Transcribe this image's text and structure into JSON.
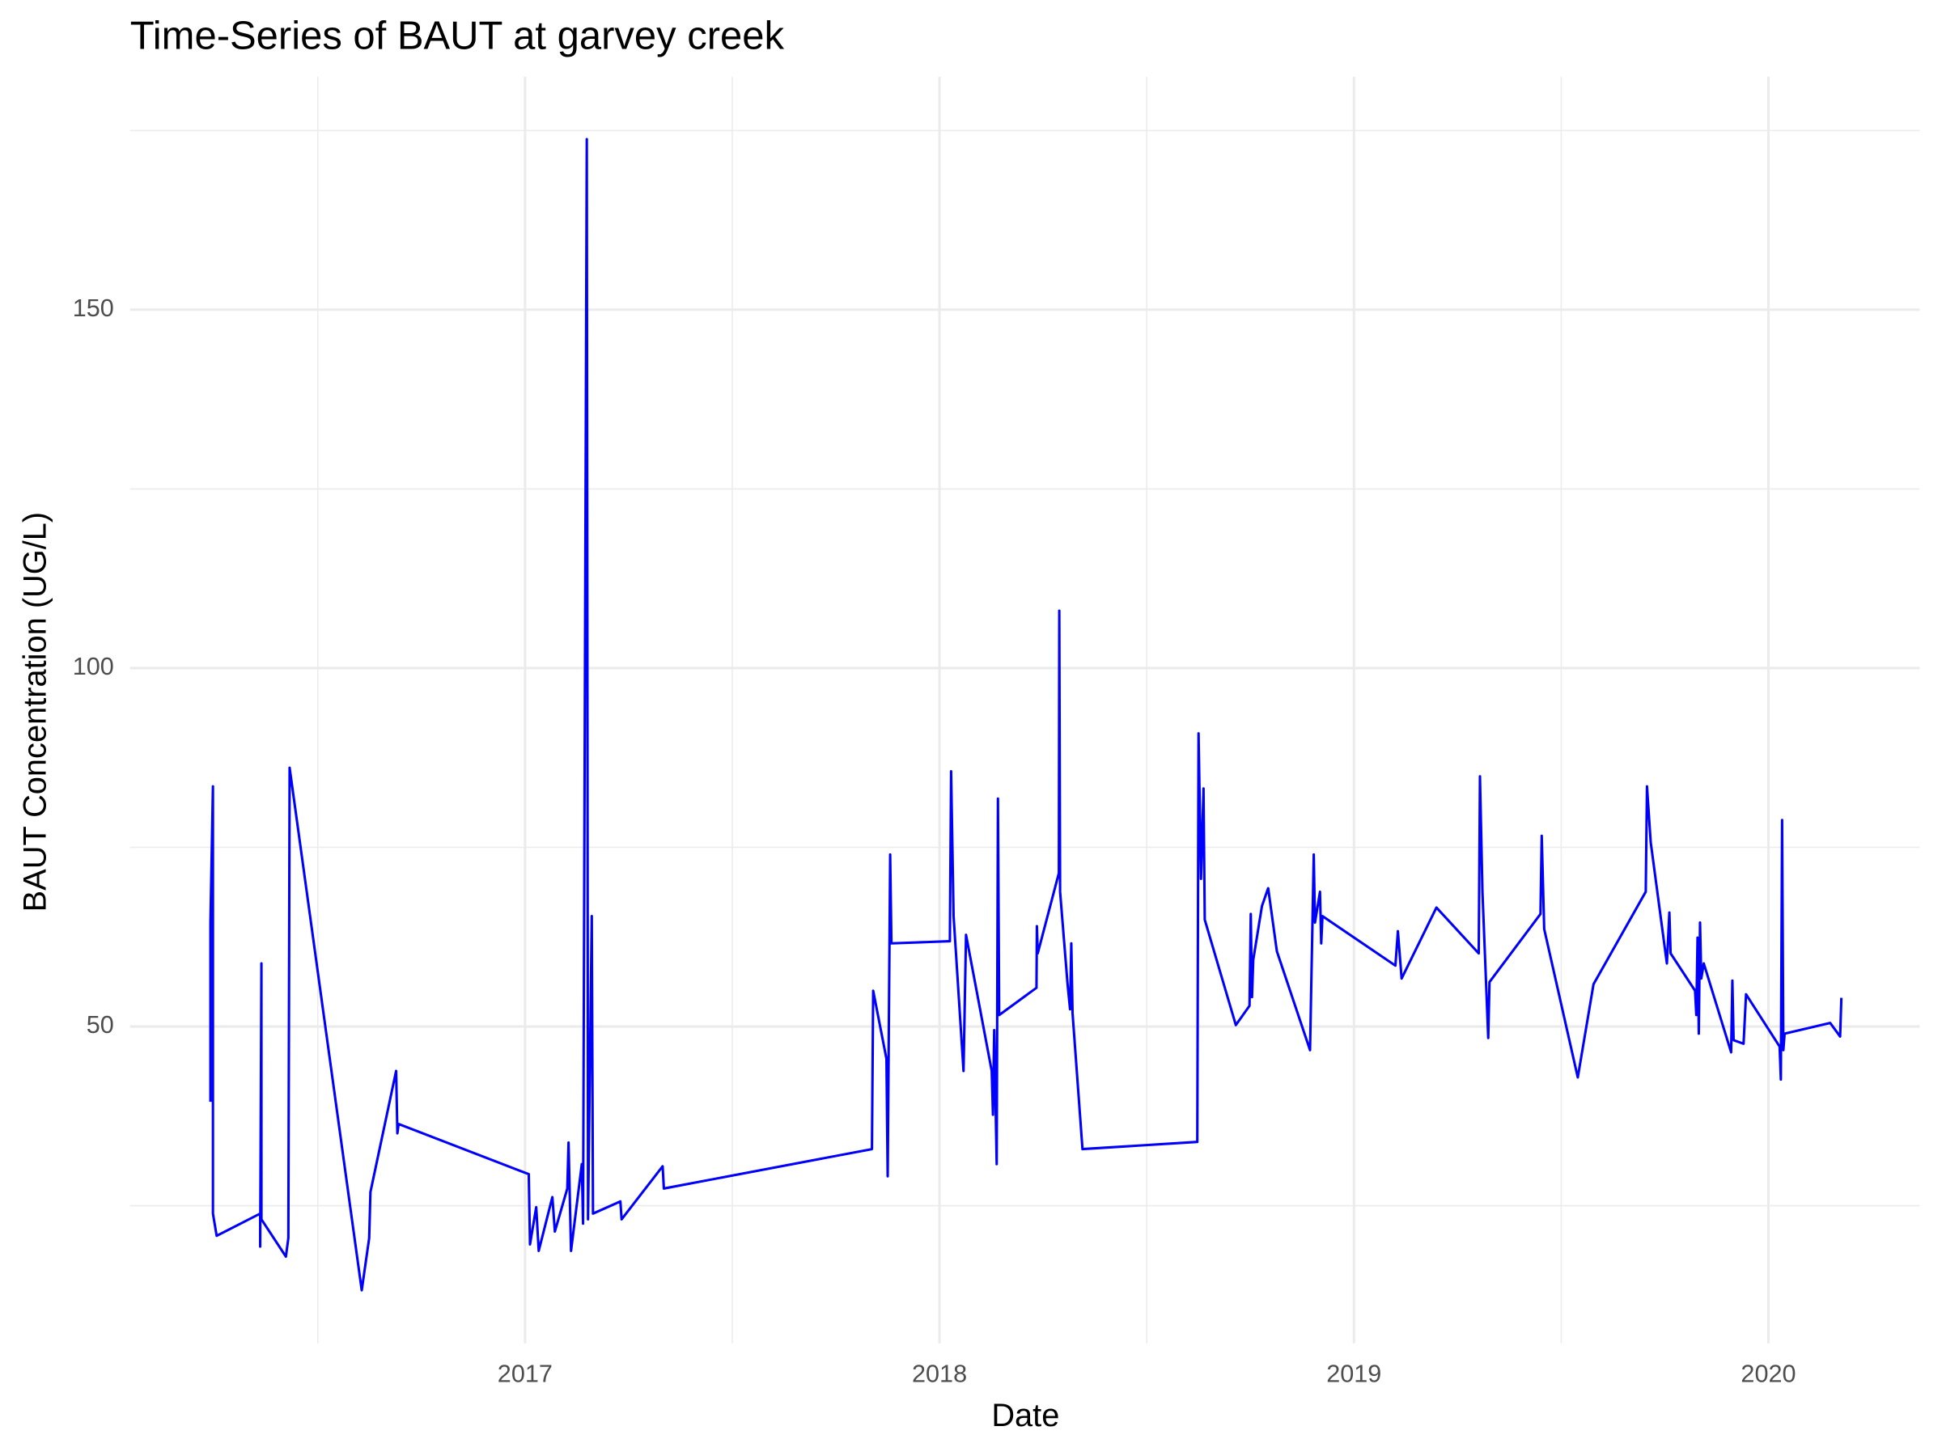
{
  "chart_data": {
    "type": "line",
    "title": "Time-Series of BAUT at garvey creek",
    "x_label": "Date",
    "y_label": "BAUT Concentration (UG/L)",
    "x": [
      2016.241,
      2016.241,
      2016.247,
      2016.247,
      2016.256,
      2016.361,
      2016.361,
      2016.364,
      2016.364,
      2016.423,
      2016.429,
      2016.432,
      2016.606,
      2016.624,
      2016.627,
      2016.689,
      2016.692,
      2016.695,
      2017.009,
      2017.012,
      2017.027,
      2017.033,
      2017.066,
      2017.072,
      2017.102,
      2017.105,
      2017.111,
      2017.137,
      2017.14,
      2017.149,
      2017.152,
      2017.161,
      2017.164,
      2017.23,
      2017.233,
      2017.332,
      2017.335,
      2017.837,
      2017.84,
      2017.872,
      2017.875,
      2017.881,
      2017.884,
      2018.025,
      2018.028,
      2018.034,
      2018.058,
      2018.064,
      2018.126,
      2018.129,
      2018.132,
      2018.138,
      2018.141,
      2018.144,
      2018.234,
      2018.235,
      2018.237,
      2018.288,
      2018.289,
      2018.291,
      2018.309,
      2018.315,
      2018.318,
      2018.321,
      2018.345,
      2018.622,
      2018.625,
      2018.631,
      2018.637,
      2018.64,
      2018.715,
      2018.748,
      2018.751,
      2018.754,
      2018.757,
      2018.778,
      2018.793,
      2018.814,
      2018.894,
      2018.903,
      2018.906,
      2018.918,
      2018.921,
      2018.924,
      2019.1,
      2019.106,
      2019.115,
      2019.199,
      2019.301,
      2019.304,
      2019.31,
      2019.324,
      2019.327,
      2019.45,
      2019.453,
      2019.459,
      2019.54,
      2019.578,
      2019.704,
      2019.707,
      2019.716,
      2019.755,
      2019.761,
      2019.764,
      2019.823,
      2019.826,
      2019.829,
      2019.832,
      2019.835,
      2019.838,
      2019.844,
      2019.91,
      2019.913,
      2019.916,
      2019.94,
      2019.946,
      2020.027,
      2020.03,
      2020.033,
      2020.036,
      2020.039,
      2020.149,
      2020.173,
      2020.176
    ],
    "series": [
      {
        "name": "BAUT",
        "color": "#0000ff",
        "values": [
          39.5,
          64.5,
          83.5,
          23.9,
          20.8,
          23.9,
          19.3,
          58.8,
          23.1,
          17.9,
          20.5,
          86.1,
          13.2,
          20.5,
          26.9,
          43.8,
          35.1,
          36.4,
          29.4,
          19.6,
          24.8,
          18.7,
          26.2,
          21.4,
          27.4,
          33.8,
          18.7,
          30.8,
          22.5,
          173.8,
          23.1,
          65.4,
          23.9,
          25.6,
          23.1,
          30.5,
          27.4,
          32.9,
          55.0,
          45.5,
          29.1,
          74.0,
          61.6,
          61.9,
          85.6,
          65.4,
          43.8,
          62.8,
          43.8,
          37.7,
          49.5,
          30.8,
          81.8,
          51.6,
          55.4,
          64.0,
          60.2,
          71.4,
          108.0,
          68.8,
          55.9,
          52.4,
          61.6,
          51.9,
          32.9,
          33.9,
          90.9,
          70.6,
          83.2,
          64.9,
          50.2,
          52.9,
          65.7,
          54.1,
          59.3,
          66.8,
          69.3,
          60.5,
          46.7,
          74.0,
          64.5,
          68.8,
          61.6,
          65.4,
          58.5,
          63.3,
          56.7,
          66.6,
          60.2,
          84.9,
          68.8,
          48.4,
          56.2,
          65.7,
          76.6,
          63.6,
          42.9,
          55.9,
          68.8,
          83.5,
          75.7,
          58.8,
          65.9,
          60.2,
          55.0,
          51.6,
          62.4,
          49.0,
          64.5,
          56.7,
          58.8,
          46.4,
          56.4,
          48.1,
          47.6,
          54.5,
          47.2,
          42.6,
          78.8,
          46.7,
          49.0,
          50.5,
          48.6,
          54.0
        ]
      }
    ],
    "xlim": [
      2016.047,
      2020.365
    ],
    "xticks": [
      2017,
      2018,
      2019,
      2020
    ],
    "ylim": [
      5.8,
      182.5
    ],
    "yticks": [
      50,
      100,
      150
    ],
    "grid": true
  }
}
